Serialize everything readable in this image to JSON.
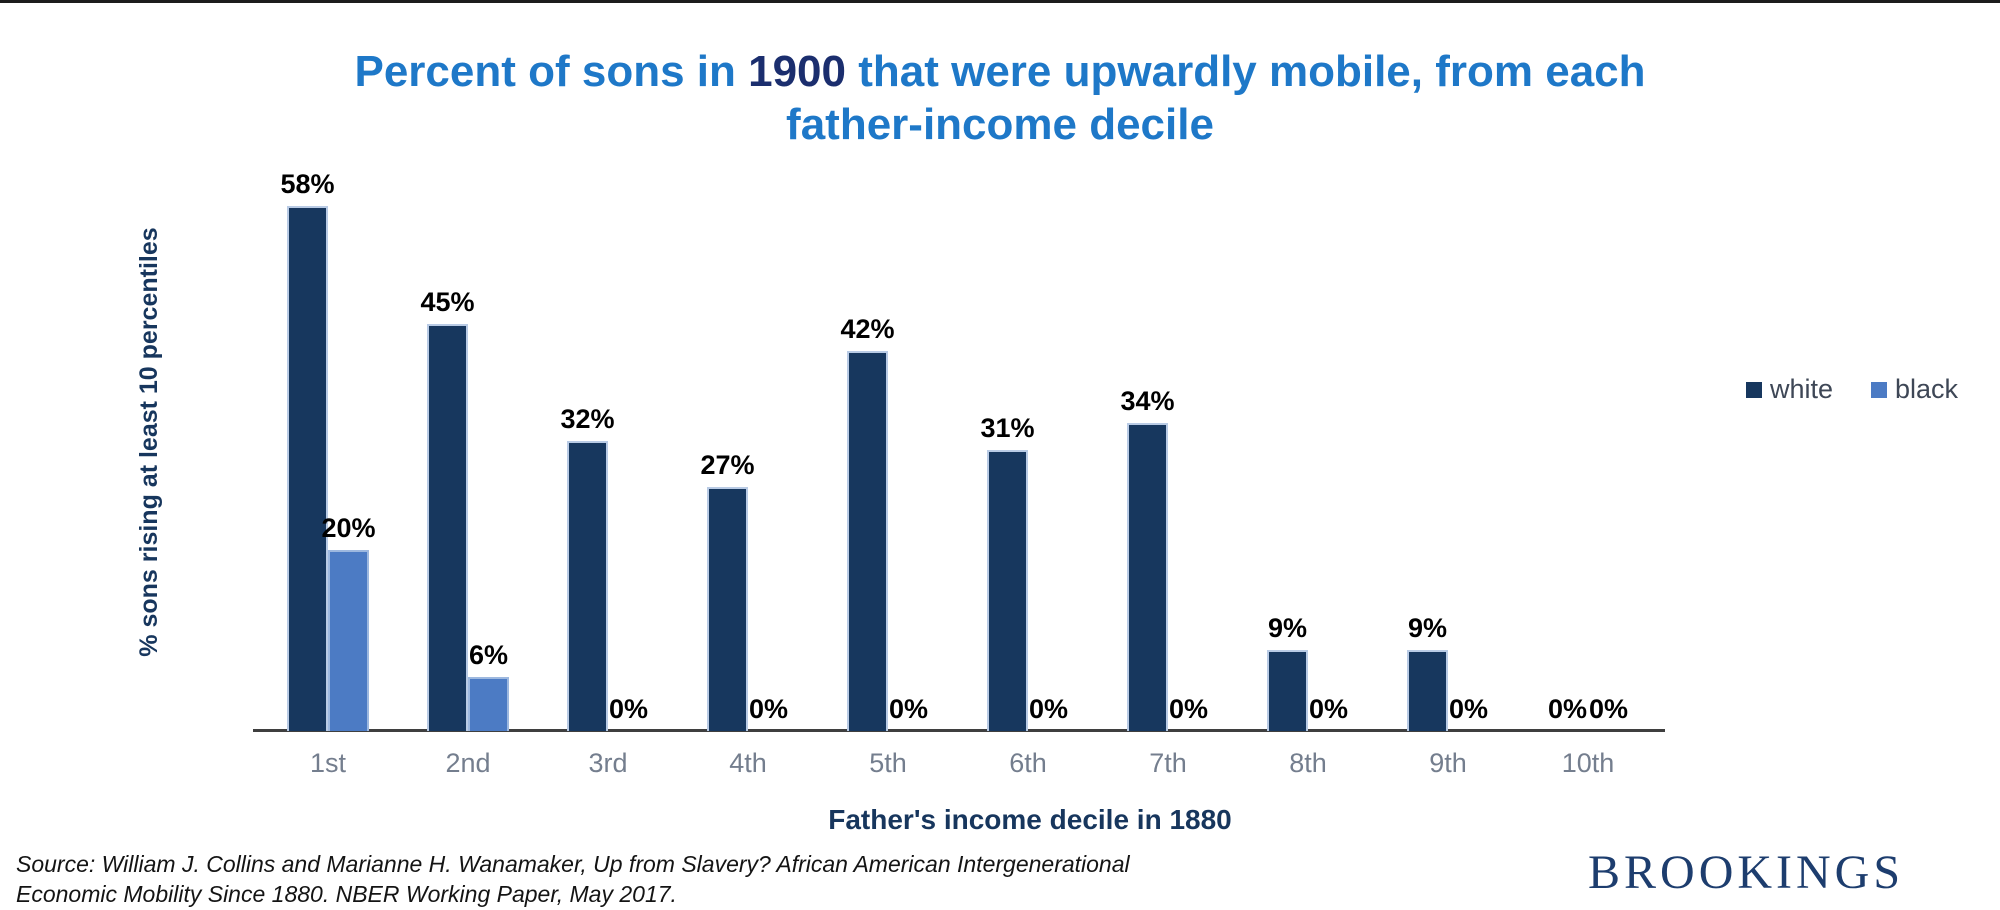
{
  "title": {
    "line1_before": "Percent of sons in ",
    "line1_year": "1900",
    "line1_after": " that were upwardly mobile, from each",
    "line2": "father-income decile"
  },
  "legend": {
    "items": [
      {
        "label": "white",
        "color": "#17375e"
      },
      {
        "label": "black",
        "color": "#4c7bc4"
      }
    ]
  },
  "chart_data": {
    "type": "bar",
    "title": "Percent of sons in 1900 that were upwardly mobile, from each father-income decile",
    "xlabel": "Father's income decile in 1880",
    "ylabel": "% sons rising at least 10 percentiles",
    "categories": [
      "1st",
      "2nd",
      "3rd",
      "4th",
      "5th",
      "6th",
      "7th",
      "8th",
      "9th",
      "10th"
    ],
    "series": [
      {
        "name": "white",
        "color": "#17375e",
        "border_color": "#b9cbe5",
        "values": [
          58,
          45,
          32,
          27,
          42,
          31,
          34,
          9,
          9,
          0
        ]
      },
      {
        "name": "black",
        "color": "#4c7bc4",
        "border_color": "#9db8df",
        "values": [
          20,
          6,
          0,
          0,
          0,
          0,
          0,
          0,
          0,
          0
        ]
      }
    ],
    "value_label_suffix": "%",
    "ylim": [
      0,
      63
    ],
    "grid": false,
    "legend_position": "right",
    "value_labels_shown": true
  },
  "source": {
    "line1": "Source: William J. Collins and Marianne H. Wanamaker, Up from Slavery? African American Intergenerational",
    "line2": "Economic Mobility Since 1880. NBER Working Paper, May 2017."
  },
  "logo": {
    "text": "BROOKINGS"
  },
  "colors": {
    "title_blue": "#1e78c8",
    "title_year_navy": "#1b2e6e",
    "axis_title_navy": "#17365d",
    "category_label_gray": "#747e8e",
    "axis_line": "#3f3f3f",
    "value_label": "#000000",
    "bar_white_series": "#17375e",
    "bar_black_series": "#4c7bc4",
    "logo_navy": "#1d3d6e"
  }
}
